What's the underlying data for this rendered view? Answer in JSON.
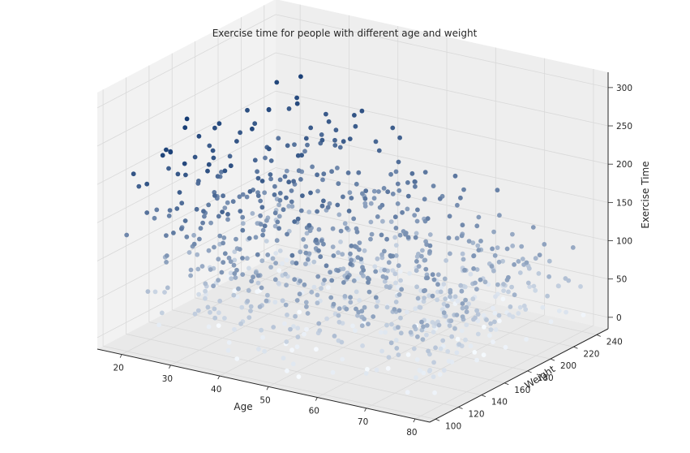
{
  "chart_data": {
    "type": "scatter",
    "title": "Exercise time for people with different age and weight",
    "xlabel": "Age",
    "ylabel": "Weight",
    "zlabel": "Exercise Time",
    "xlim": [
      15,
      83
    ],
    "ylim": [
      95,
      250
    ],
    "zlim": [
      -15,
      320
    ],
    "xticks": [
      "20",
      "30",
      "40",
      "50",
      "60",
      "70",
      "80"
    ],
    "yticks": [
      "100",
      "120",
      "140",
      "160",
      "180",
      "200",
      "220",
      "240"
    ],
    "zticks": [
      "0",
      "50",
      "100",
      "150",
      "200",
      "250",
      "300"
    ],
    "grid": true,
    "projection": "3d",
    "colormap": "Blues",
    "colors": {
      "pane_left": "#f2f2f2",
      "pane_back": "#eeeeee",
      "pane_floor": "#e9e9e9",
      "grid": "#d9d9d9",
      "axis": "#262626",
      "cmap_low": "#f7fbff",
      "cmap_high": "#08306b"
    },
    "sample_points": [
      {
        "age": 20,
        "weight": 150,
        "time": 238
      },
      {
        "age": 25,
        "weight": 200,
        "time": 180
      },
      {
        "age": 30,
        "weight": 120,
        "time": 130
      },
      {
        "age": 35,
        "weight": 240,
        "time": 210
      },
      {
        "age": 40,
        "weight": 170,
        "time": 95
      },
      {
        "age": 45,
        "weight": 110,
        "time": 40
      },
      {
        "age": 50,
        "weight": 220,
        "time": 165
      },
      {
        "age": 55,
        "weight": 140,
        "time": 60
      },
      {
        "age": 60,
        "weight": 190,
        "time": 110
      },
      {
        "age": 65,
        "weight": 130,
        "time": 25
      },
      {
        "age": 70,
        "weight": 230,
        "time": 90
      },
      {
        "age": 75,
        "weight": 160,
        "time": 30
      },
      {
        "age": 80,
        "weight": 210,
        "time": 55
      }
    ],
    "point_count": 900
  }
}
